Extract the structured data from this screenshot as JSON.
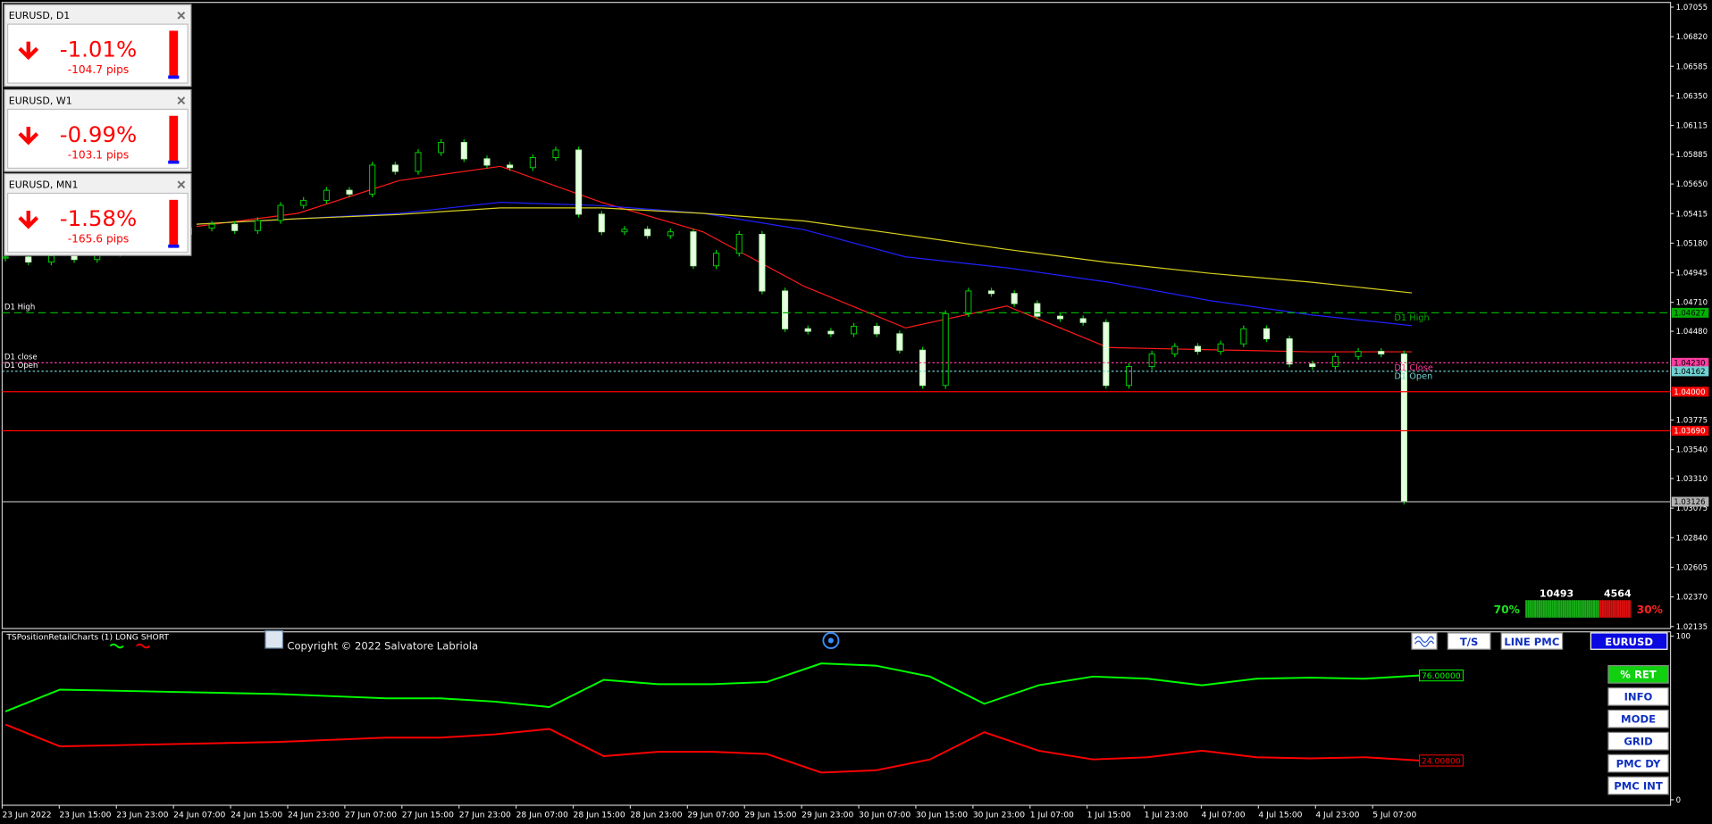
{
  "widgets": [
    {
      "title": "EURUSD, D1",
      "change": "-1.01%",
      "pips": "-104.7 pips"
    },
    {
      "title": "EURUSD, W1",
      "change": "-0.99%",
      "pips": "-103.1 pips"
    },
    {
      "title": "EURUSD, MN1",
      "change": "-1.58%",
      "pips": "-165.6 pips"
    }
  ],
  "price_axis": {
    "ylim": [
      1.0211,
      1.0711
    ],
    "ticks": [
      {
        "value": 1.07055,
        "label": "1.07055"
      },
      {
        "value": 1.0682,
        "label": "1.06820"
      },
      {
        "value": 1.06585,
        "label": "1.06585"
      },
      {
        "value": 1.0635,
        "label": "1.06350"
      },
      {
        "value": 1.06115,
        "label": "1.06115"
      },
      {
        "value": 1.05885,
        "label": "1.05885"
      },
      {
        "value": 1.0565,
        "label": "1.05650"
      },
      {
        "value": 1.05415,
        "label": "1.05415"
      },
      {
        "value": 1.0518,
        "label": "1.05180"
      },
      {
        "value": 1.04945,
        "label": "1.04945"
      },
      {
        "value": 1.0471,
        "label": "1.04710"
      },
      {
        "value": 1.0448,
        "label": "1.04480"
      },
      {
        "value": 1.03775,
        "label": "1.03775"
      },
      {
        "value": 1.0354,
        "label": "1.03540"
      },
      {
        "value": 1.0331,
        "label": "1.03310"
      },
      {
        "value": 1.03075,
        "label": "1.03075"
      },
      {
        "value": 1.0284,
        "label": "1.02840"
      },
      {
        "value": 1.02605,
        "label": "1.02605"
      },
      {
        "value": 1.0237,
        "label": "1.02370"
      },
      {
        "value": 1.02135,
        "label": "1.02135"
      }
    ]
  },
  "price_lines": [
    {
      "value": 1.04627,
      "label": "1.04627",
      "color": "#00b000",
      "left_label": "D1 High",
      "right_label": "D1 High"
    },
    {
      "value": 1.0423,
      "label": "1.04230",
      "color": "#ff3ca0",
      "left_label": "D1 close",
      "right_label": "D1 Close"
    },
    {
      "value": 1.04162,
      "label": "1.04162",
      "color": "#6fd0d0",
      "left_label": "D1 Open",
      "right_label": "D1 Open"
    },
    {
      "value": 1.04,
      "label": "1.04000",
      "color": "#ff0000"
    },
    {
      "value": 1.0369,
      "label": "1.03690",
      "color": "#ff0000"
    },
    {
      "value": 1.03126,
      "label": "1.03126",
      "color": "#b0b0b0"
    }
  ],
  "candles": {
    "close": [
      1.0507,
      1.0503,
      1.0508,
      1.0505,
      1.051,
      1.0515,
      1.052,
      1.0525,
      1.053,
      1.0533,
      1.0528,
      1.0536,
      1.0548,
      1.0552,
      1.056,
      1.0557,
      1.058,
      1.0575,
      1.059,
      1.0598,
      1.0585,
      1.058,
      1.0578,
      1.0586,
      1.0592,
      1.0541,
      1.0527,
      1.0529,
      1.0524,
      1.0527,
      1.05,
      1.051,
      1.0525,
      1.048,
      1.045,
      1.0448,
      1.0446,
      1.0452,
      1.0446,
      1.0433,
      1.0405,
      1.0462,
      1.048,
      1.0478,
      1.047,
      1.046,
      1.0458,
      1.0455,
      1.0405,
      1.042,
      1.043,
      1.0436,
      1.0432,
      1.0438,
      1.045,
      1.0442,
      1.0422,
      1.042,
      1.0428,
      1.0432,
      1.043,
      1.0313
    ]
  },
  "moving_averages": [
    {
      "color": "#ff1a1a",
      "values": [
        1.05313,
        1.05417,
        1.05677,
        1.0579,
        1.05504,
        1.0527,
        1.04837,
        1.04507,
        1.04681,
        1.04351,
        1.04334,
        1.04317,
        1.04317
      ]
    },
    {
      "color": "#2020ff",
      "values": [
        1.05331,
        1.05374,
        1.05417,
        1.05504,
        1.05478,
        1.05417,
        1.05287,
        1.05071,
        1.04984,
        1.04871,
        1.04724,
        1.04611,
        1.04525
      ]
    },
    {
      "color": "#d8d020",
      "values": [
        1.05331,
        1.05374,
        1.05408,
        1.0546,
        1.0546,
        1.05417,
        1.05356,
        1.05244,
        1.05131,
        1.05027,
        1.04941,
        1.04871,
        1.04785
      ]
    }
  ],
  "time_axis": {
    "labels": [
      "23 Jun 2022",
      "23 Jun 15:00",
      "23 Jun 23:00",
      "24 Jun 07:00",
      "24 Jun 15:00",
      "24 Jun 23:00",
      "27 Jun 07:00",
      "27 Jun 15:00",
      "27 Jun 23:00",
      "28 Jun 07:00",
      "28 Jun 15:00",
      "28 Jun 23:00",
      "29 Jun 07:00",
      "29 Jun 15:00",
      "29 Jun 23:00",
      "30 Jun 07:00",
      "30 Jun 15:00",
      "30 Jun 23:00",
      "1 Jul 07:00",
      "1 Jul 15:00",
      "1 Jul 23:00",
      "4 Jul 07:00",
      "4 Jul 15:00",
      "4 Jul 23:00",
      "5 Jul 07:00"
    ]
  },
  "indicator": {
    "title": "TSPositionRetailCharts (1) LONG SHORT",
    "copyright": "Copyright © 2022 Salvatore Labriola",
    "ylim": [
      0,
      100
    ],
    "yticks": [
      0,
      100
    ],
    "series": [
      {
        "color": "#00ff00",
        "value_label": "76.00000",
        "values": [
          54,
          67.3,
          66.7,
          66,
          65.3,
          64.7,
          63.3,
          62,
          62,
          60,
          56.7,
          73.3,
          70.7,
          70.7,
          72,
          83.3,
          82,
          75.3,
          58.7,
          70,
          75.3,
          74,
          70,
          74,
          74.7,
          74,
          76
        ]
      },
      {
        "color": "#ff0000",
        "value_label": "24.00000",
        "values": [
          46,
          32.7,
          33.3,
          34,
          34.7,
          35.3,
          36.7,
          38,
          38,
          40,
          43.3,
          26.7,
          29.3,
          29.3,
          28,
          16.7,
          18,
          24.7,
          41.3,
          30,
          24.7,
          26,
          30,
          26,
          25.3,
          26,
          24
        ]
      }
    ]
  },
  "buttons": {
    "top": [
      "T/S",
      "LINE PMC",
      "EURUSD"
    ],
    "side": [
      "% RET",
      "INFO",
      "MODE",
      "GRID",
      "PMC DY",
      "PMC INT"
    ]
  },
  "sentiment": {
    "long": 10493,
    "short": 4564,
    "long_pct": "70%",
    "short_pct": "30%"
  }
}
